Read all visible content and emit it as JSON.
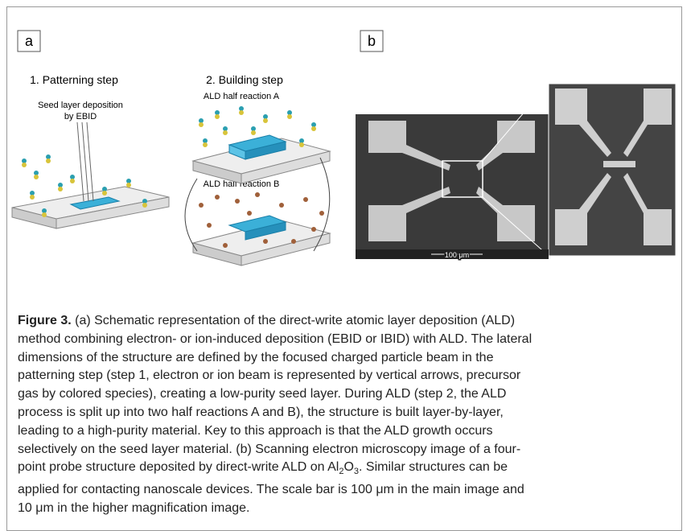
{
  "panels": [
    {
      "label": "a",
      "step1": "1. Patterning step",
      "step2": "2. Building step",
      "seed": [
        "Seed layer deposition",
        "by EBID"
      ],
      "half_a": "ALD half reaction A",
      "half_b": "ALD half reaction B"
    },
    {
      "label": "b",
      "scale_bar": "100 μm"
    }
  ],
  "caption": {
    "figure": "Figure 3.",
    "lines": [
      " (a) Schematic representation of the direct-write atomic layer deposition (ALD)",
      "method combining electron- or ion-induced deposition (EBID or IBID) with ALD. The lateral",
      "dimensions of the structure are defined by the focused charged particle beam in the",
      "patterning step (step 1, electron or ion beam is represented by vertical arrows, precursor",
      "gas by colored species), creating a low-purity seed layer. During ALD (step 2, the ALD",
      "process is split up into two half reactions A and B), the structure is built layer-by-layer,",
      "leading to a high-purity material. Key to this approach is that the ALD growth occurs",
      "selectively on the seed layer material. (b) Scanning electron microscopy image of a four-",
      [
        "point probe structure deposited by direct-write ALD on Al",
        "2",
        "O",
        "3",
        ". Similar structures can be"
      ],
      "applied for contacting nanoscale devices. The scale bar is 100 μm in the main image and",
      "10 μm in the higher magnification image."
    ]
  }
}
